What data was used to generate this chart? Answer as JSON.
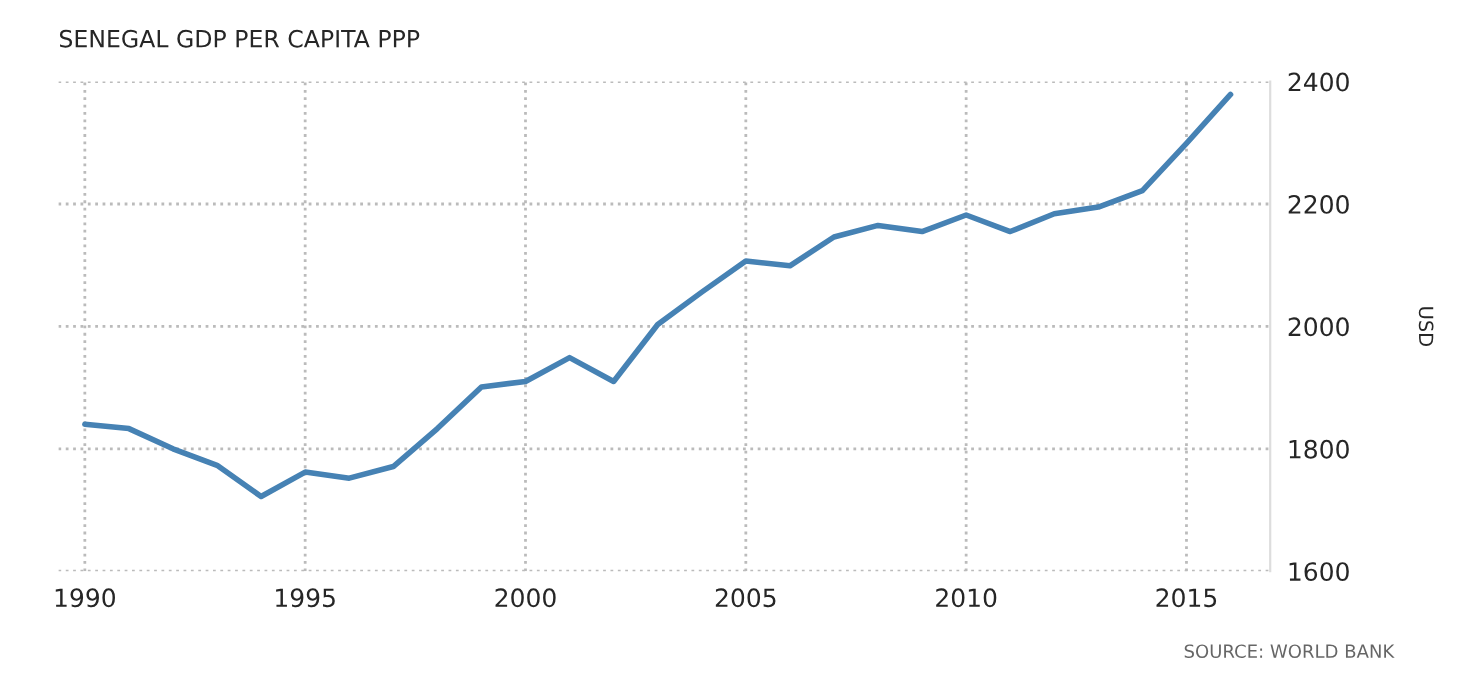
{
  "chart_data": {
    "type": "line",
    "title": "SENEGAL GDP PER CAPITA PPP",
    "ylabel": "USD",
    "annotations": [
      "SOURCE: WORLD BANK"
    ],
    "x": [
      1990,
      1991,
      1992,
      1993,
      1994,
      1995,
      1996,
      1997,
      1998,
      1999,
      2000,
      2001,
      2002,
      2003,
      2004,
      2005,
      2006,
      2007,
      2008,
      2009,
      2010,
      2011,
      2012,
      2013,
      2014,
      2015,
      2016
    ],
    "series": [
      {
        "color": "#4682b4",
        "values": [
          1840,
          1833,
          1800,
          1773,
          1722,
          1762,
          1752,
          1771,
          1833,
          1901,
          1910,
          1949,
          1910,
          2003,
          2056,
          2107,
          2099,
          2146,
          2165,
          2155,
          2182,
          2155,
          2184,
          2195,
          2222,
          2299,
          2379
        ]
      }
    ],
    "xlim": [
      1989.4,
      2016.9
    ],
    "xticks": [
      1990,
      1995,
      2000,
      2005,
      2010,
      2015
    ],
    "ylim": [
      1600,
      2400
    ],
    "yticks": [
      1600,
      1800,
      2000,
      2200,
      2400
    ],
    "grid": true,
    "legend": false,
    "marker": "none",
    "line_style": "solid"
  }
}
